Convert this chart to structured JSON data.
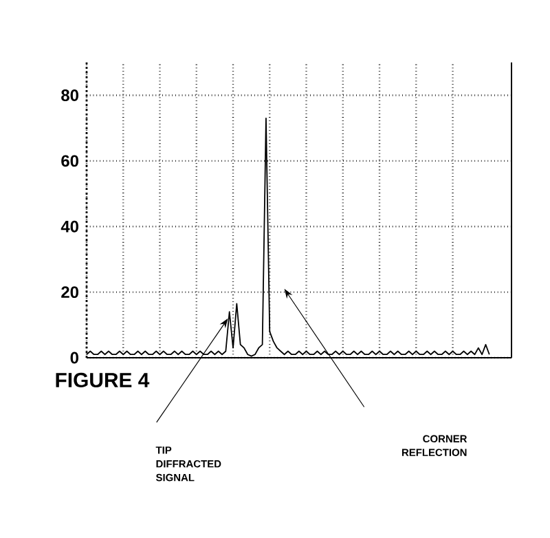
{
  "chart_data": {
    "type": "line",
    "categories": [
      null,
      null,
      null,
      null,
      null,
      null,
      null,
      null,
      null,
      null,
      null,
      null,
      null,
      null,
      null,
      null,
      null,
      null,
      null,
      null,
      null,
      null,
      null,
      null,
      null,
      null,
      null,
      null,
      null,
      null,
      null,
      null,
      null,
      null,
      null,
      null,
      null,
      null,
      null,
      null,
      null,
      null,
      null,
      null,
      null,
      null,
      null,
      null,
      null,
      null,
      null,
      null,
      null,
      null,
      null,
      null,
      null,
      null,
      null,
      null,
      null,
      null,
      null,
      null,
      null,
      null,
      null,
      null,
      null,
      null,
      null,
      null,
      null,
      null,
      null,
      null,
      null,
      null,
      null,
      null,
      null,
      null,
      null,
      null,
      null,
      null,
      null,
      null,
      null,
      null,
      null,
      null,
      null,
      null,
      null,
      null,
      null,
      null,
      null,
      null,
      null,
      null,
      null,
      null,
      null,
      null,
      null,
      null,
      null,
      null,
      null
    ],
    "series": [
      {
        "color": "#000000",
        "values": [
          1,
          2,
          1,
          1,
          2,
          1,
          2,
          1,
          1,
          2,
          1,
          2,
          1,
          1,
          2,
          1,
          2,
          1,
          1,
          2,
          1,
          2,
          1,
          1,
          2,
          1,
          2,
          1,
          1,
          2,
          1,
          2,
          1,
          1,
          2,
          1,
          2,
          1,
          2,
          14,
          3,
          16.5,
          4,
          3,
          1,
          0.5,
          1,
          3,
          4,
          73,
          8,
          5,
          3,
          2,
          1,
          2,
          1,
          1,
          2,
          1,
          2,
          1,
          1,
          2,
          1,
          2,
          1,
          1,
          2,
          1,
          2,
          1,
          1,
          2,
          1,
          2,
          1,
          1,
          2,
          1,
          2,
          1,
          1,
          2,
          1,
          2,
          1,
          1,
          2,
          1,
          2,
          1,
          1,
          2,
          1,
          2,
          1,
          1,
          2,
          1,
          2,
          1,
          1,
          2,
          1,
          2,
          1,
          3,
          1,
          4,
          1
        ]
      }
    ],
    "ylim": [
      0,
      90
    ],
    "yticks": [
      0,
      20,
      40,
      60,
      80
    ],
    "tick_labels": "y",
    "grid": true,
    "marker": "none",
    "line_style": "solid",
    "annotations": [
      "FIGURE 4",
      "TIP DIFFRACTED SIGNAL",
      "CORNER REFLECTION"
    ]
  }
}
